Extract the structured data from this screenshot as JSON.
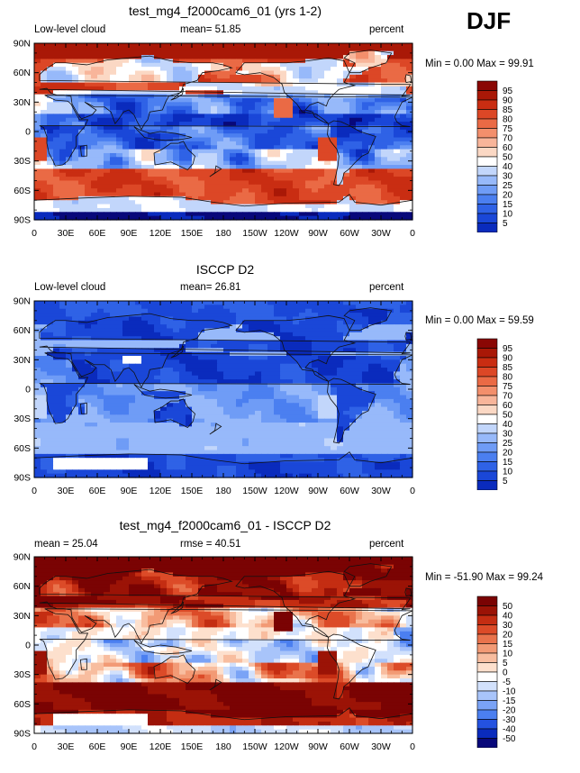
{
  "season": "DJF",
  "colors": {
    "cloud_scale": [
      "#08087a",
      "#0a2bbd",
      "#1a47d8",
      "#2f62e6",
      "#4b7ff0",
      "#6f9cf6",
      "#97b9fa",
      "#c2d6fb",
      "#ffffff",
      "#fbd8c4",
      "#f8b59a",
      "#f38f6c",
      "#ea6a45",
      "#dc4726",
      "#c92d12",
      "#a91807",
      "#8a0704"
    ],
    "diff_scale": [
      "#08087a",
      "#0a2bbd",
      "#2452e0",
      "#4b7ff0",
      "#7aa3f6",
      "#a8c4fa",
      "#d2e1fc",
      "#ffffff",
      "#fde0cd",
      "#f8bd9f",
      "#f29a75",
      "#e9734c",
      "#dc4b28",
      "#c42d12",
      "#9b1306",
      "#7a0303"
    ],
    "coast": "#111111"
  },
  "panels": [
    {
      "title": "test_mg4_f2000cam6_01 (yrs 1-2)",
      "left_label": "Low-level cloud",
      "center_label": "mean=  51.85",
      "units": "percent",
      "minmax": "Min =    0.00 Max =   99.91",
      "scale": "cloud",
      "mean": 51.85,
      "min": 0.0,
      "max": 99.91
    },
    {
      "title": "ISCCP D2",
      "left_label": "Low-level cloud",
      "center_label": "mean=  26.81",
      "units": "percent",
      "minmax": "Min =    0.00 Max =   59.59",
      "scale": "cloud",
      "mean": 26.81,
      "min": 0.0,
      "max": 59.59
    },
    {
      "title": "test_mg4_f2000cam6_01 - ISCCP D2",
      "left_label": "mean =  25.04",
      "center_label": "rmse =  40.51",
      "units": "percent",
      "minmax": "Min = -51.90 Max =   99.24",
      "scale": "diff",
      "mean": 25.04,
      "rmse": 40.51,
      "min": -51.9,
      "max": 99.24
    }
  ],
  "map_axes": {
    "lat_ticks": [
      "90N",
      "60N",
      "30N",
      "0",
      "30S",
      "60S",
      "90S"
    ],
    "lon_ticks": [
      "0",
      "30E",
      "60E",
      "90E",
      "120E",
      "150E",
      "180",
      "150W",
      "120W",
      "90W",
      "60W",
      "30W",
      "0"
    ]
  },
  "colorbars": {
    "cloud": [
      "95",
      "90",
      "85",
      "80",
      "75",
      "70",
      "60",
      "50",
      "40",
      "30",
      "25",
      "20",
      "15",
      "10",
      "5"
    ],
    "diff": [
      "50",
      "40",
      "30",
      "20",
      "15",
      "10",
      "5",
      "0",
      "-5",
      "-10",
      "-15",
      "-20",
      "-30",
      "-40",
      "-50"
    ]
  }
}
